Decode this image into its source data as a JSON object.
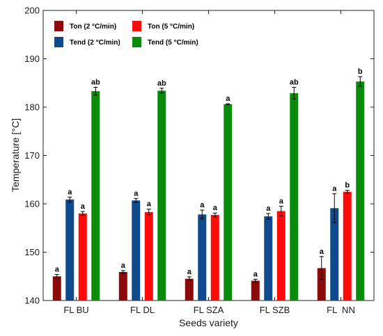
{
  "chart_data": {
    "type": "bar",
    "xlabel": "Seeds variety",
    "ylabel": "Temperature [°C]",
    "ylim": [
      140,
      200
    ],
    "yticks": [
      140,
      150,
      160,
      170,
      180,
      190,
      200
    ],
    "categories": [
      "FL BU",
      "FL DL",
      "FL SZA",
      "FL SZB",
      "FL  NN"
    ],
    "series": [
      {
        "name": "Ton (2 °C/min)",
        "color": "#8b0a0a",
        "values": [
          145.0,
          145.9,
          144.5,
          144.1,
          146.7
        ],
        "errors": [
          0.4,
          0.3,
          0.4,
          0.3,
          2.4
        ],
        "labels": [
          "a",
          "a",
          "a",
          "a",
          "a"
        ]
      },
      {
        "name": "Tend (2 °C/min)",
        "color": "#0e4a8c",
        "values": [
          160.9,
          160.7,
          157.8,
          157.4,
          159.1
        ],
        "errors": [
          0.5,
          0.4,
          0.9,
          0.6,
          3.0
        ],
        "labels": [
          "a",
          "a",
          "a",
          "a",
          "a"
        ]
      },
      {
        "name": "Ton (5 °C/min)",
        "color": "#ff0a0a",
        "values": [
          158.0,
          158.3,
          157.7,
          158.5,
          162.5
        ],
        "errors": [
          0.4,
          0.6,
          0.4,
          1.0,
          0.3
        ],
        "labels": [
          "a",
          "a",
          "a",
          "a",
          "b"
        ]
      },
      {
        "name": "Tend (5 °C/min)",
        "color": "#0a8c0a",
        "values": [
          183.3,
          183.4,
          180.6,
          182.9,
          185.3
        ],
        "errors": [
          0.8,
          0.5,
          0.1,
          1.2,
          1.0
        ],
        "labels": [
          "ab",
          "ab",
          "a",
          "ab",
          "b"
        ]
      }
    ],
    "legend_order": [
      0,
      2,
      1,
      3
    ],
    "legend_position": "top-left",
    "grid": false
  }
}
